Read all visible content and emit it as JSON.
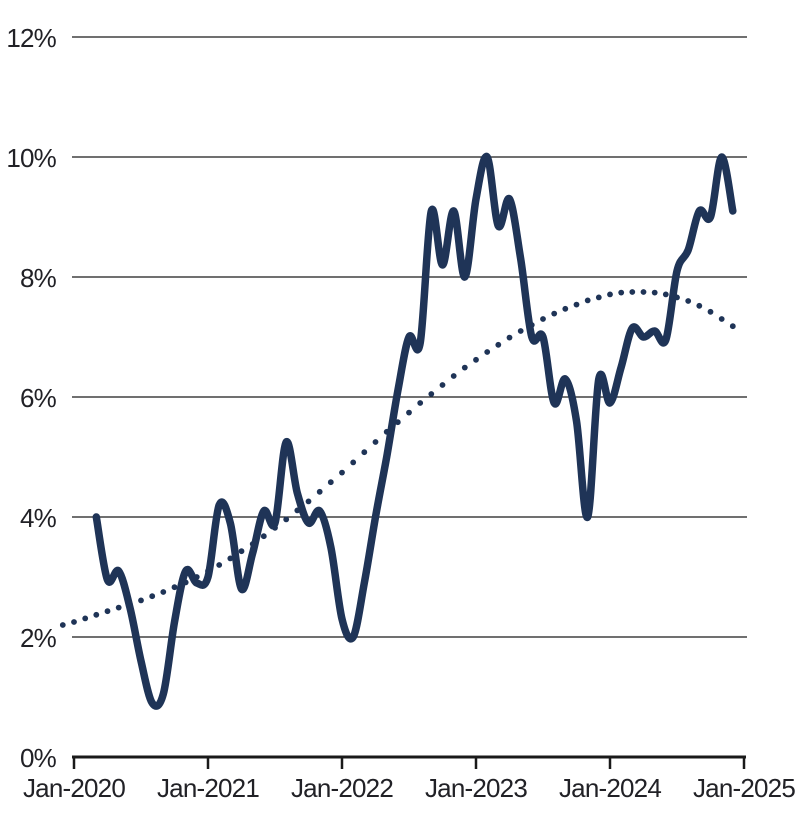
{
  "chart_data": {
    "type": "line",
    "title": "",
    "grid": "horizontal",
    "legend": "none",
    "x_axis": {
      "tick_labels": [
        "Jan-2020",
        "Jan-2021",
        "Jan-2022",
        "Jan-2023",
        "Jan-2024",
        "Jan-2025"
      ],
      "tick_month_index": [
        0,
        12,
        24,
        36,
        48,
        60
      ],
      "months_total": 60
    },
    "y_axis": {
      "tick_labels": [
        "0%",
        "2%",
        "4%",
        "6%",
        "8%",
        "10%",
        "12%"
      ],
      "tick_values": [
        0,
        2,
        4,
        6,
        8,
        10,
        12
      ],
      "min": 0,
      "max": 12,
      "unit": "%"
    },
    "series": [
      {
        "name": "monthly-rate-solid",
        "style": "solid",
        "color": "#1f3457",
        "start_month_index": 2,
        "values": [
          4.0,
          2.95,
          3.1,
          2.5,
          1.6,
          0.9,
          1.05,
          2.25,
          3.1,
          2.9,
          3.0,
          4.2,
          3.9,
          2.8,
          3.4,
          4.1,
          3.9,
          5.25,
          4.4,
          3.9,
          4.1,
          3.5,
          2.3,
          2.0,
          2.9,
          4.0,
          5.0,
          6.1,
          7.0,
          6.9,
          9.1,
          8.2,
          9.1,
          8.0,
          9.3,
          10.0,
          8.85,
          9.3,
          8.3,
          7.0,
          7.0,
          5.9,
          6.3,
          5.6,
          4.0,
          6.3,
          5.9,
          6.5,
          7.15,
          7.0,
          7.1,
          6.95,
          8.1,
          8.45,
          9.1,
          9.0,
          10.0,
          9.1
        ]
      },
      {
        "name": "trend-dotted",
        "style": "dotted",
        "color": "#1f3457",
        "start_month_index": -1,
        "values": [
          2.2,
          2.25,
          2.31,
          2.37,
          2.43,
          2.49,
          2.55,
          2.61,
          2.68,
          2.75,
          2.83,
          2.91,
          3.0,
          3.1,
          3.2,
          3.31,
          3.43,
          3.55,
          3.68,
          3.82,
          3.96,
          4.11,
          4.26,
          4.42,
          4.58,
          4.74,
          4.91,
          5.08,
          5.25,
          5.42,
          5.58,
          5.74,
          5.9,
          6.05,
          6.2,
          6.35,
          6.49,
          6.62,
          6.75,
          6.87,
          6.99,
          7.1,
          7.2,
          7.3,
          7.39,
          7.47,
          7.54,
          7.61,
          7.66,
          7.71,
          7.74,
          7.75,
          7.75,
          7.74,
          7.71,
          7.66,
          7.6,
          7.52,
          7.42,
          7.3,
          7.18
        ]
      }
    ]
  },
  "colors": {
    "line_navy": "#1f3457",
    "grid_line": "#1a1a1a",
    "axis_line": "#1a1a1a",
    "label_text": "#212126",
    "background": "#ffffff"
  }
}
